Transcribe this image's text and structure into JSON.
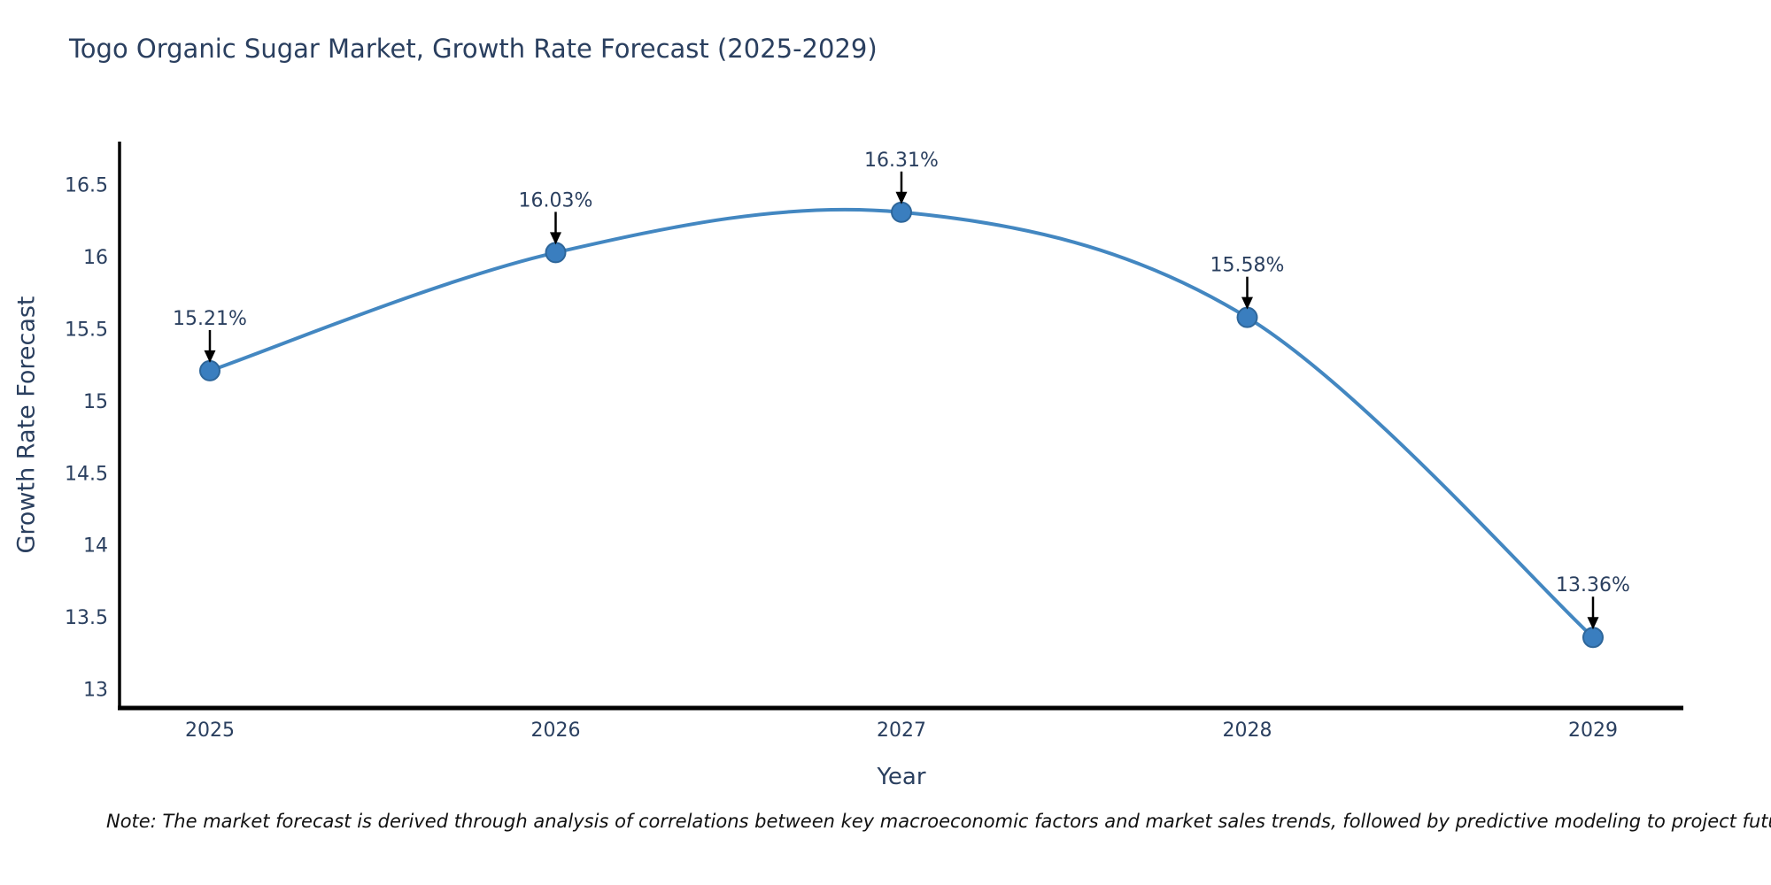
{
  "title": "Togo Organic Sugar Market, Growth Rate Forecast (2025-2029)",
  "note": "Note: The market forecast is derived through analysis of correlations between key macroeconomic factors and market sales trends, followed by predictive modeling to project future sales",
  "chart_data": {
    "type": "line",
    "title": "Togo Organic Sugar Market, Growth Rate Forecast (2025-2029)",
    "xlabel": "Year",
    "ylabel": "Growth Rate Forecast",
    "categories": [
      "2025",
      "2026",
      "2027",
      "2028",
      "2029"
    ],
    "series": [
      {
        "name": "Growth Rate Forecast",
        "values": [
          15.21,
          16.03,
          16.31,
          15.58,
          13.36
        ],
        "labels": [
          "15.21%",
          "16.03%",
          "16.31%",
          "15.58%",
          "13.36%"
        ]
      }
    ],
    "yticks": [
      13,
      13.5,
      14,
      14.5,
      15,
      15.5,
      16,
      16.5
    ],
    "ytick_labels": [
      "13",
      "13.5",
      "14",
      "14.5",
      "15",
      "15.5",
      "16",
      "16.5"
    ],
    "ylim": [
      12.87,
      16.8
    ],
    "grid": false,
    "legend_position": "none",
    "line_shape": "spline",
    "annotations_style": "value-label-with-down-arrow",
    "colors": {
      "line": "#4387c1",
      "marker": "#3a7ebf",
      "marker_edge": "#2e669a",
      "arrow": "#000000",
      "axis": "#000000",
      "text": "#2a3f5f"
    }
  }
}
